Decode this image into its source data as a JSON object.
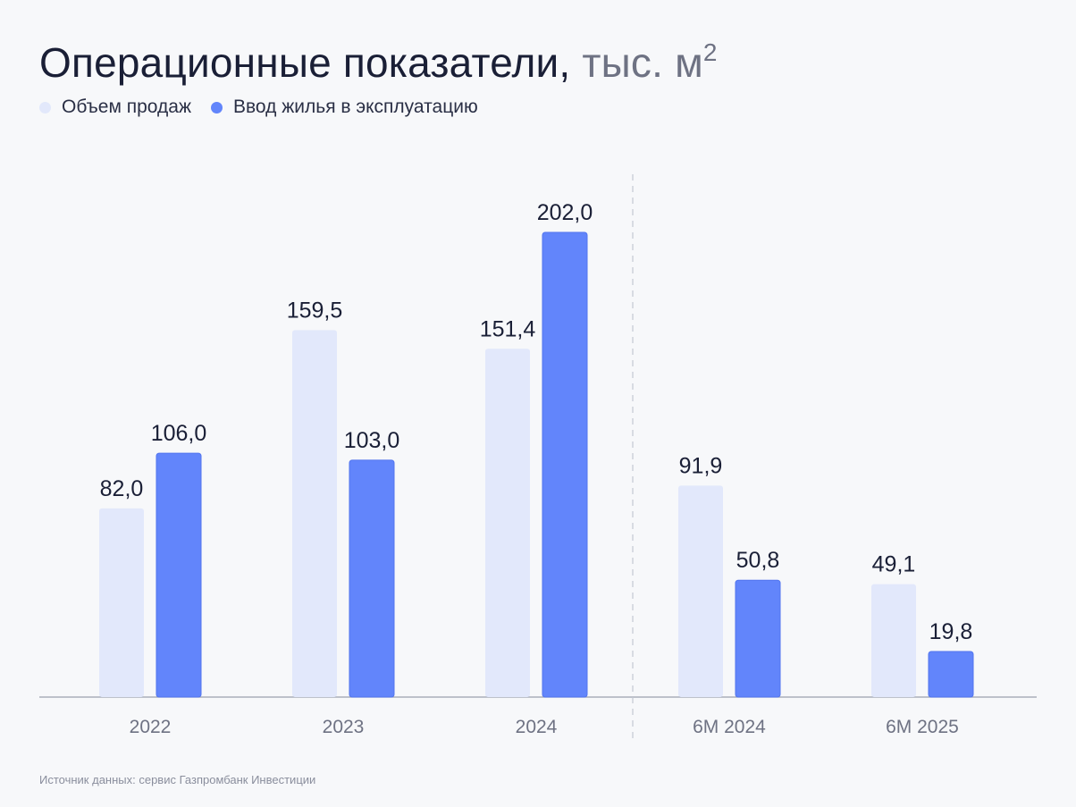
{
  "header": {
    "title_main": "Операционные показатели,",
    "title_unit": "тыс. м",
    "title_unit_sup": "2"
  },
  "legend": [
    {
      "label": "Объем продаж",
      "color": "#e2e8fb"
    },
    {
      "label": "Ввод жилья в эксплуатацию",
      "color": "#6285fb"
    }
  ],
  "source": "Источник данных: сервис Газпромбанк Инвестиции",
  "chart_data": {
    "type": "bar",
    "categories": [
      "2022",
      "2023",
      "2024",
      "6М 2024",
      "6М 2025"
    ],
    "series": [
      {
        "name": "Объем продаж",
        "values": [
          82.0,
          159.5,
          151.4,
          91.9,
          49.1
        ],
        "labels": [
          "82,0",
          "159,5",
          "151,4",
          "91,9",
          "49,1"
        ],
        "color": "#e2e8fb"
      },
      {
        "name": "Ввод жилья в эксплуатацию",
        "values": [
          106.0,
          103.0,
          202.0,
          50.8,
          19.8
        ],
        "labels": [
          "106,0",
          "103,0",
          "202,0",
          "50,8",
          "19,8"
        ],
        "color": "#6285fb"
      }
    ],
    "ylim": [
      0,
      202
    ],
    "grid": false,
    "legend_position": "top-left",
    "separator_after_category": "2024"
  }
}
